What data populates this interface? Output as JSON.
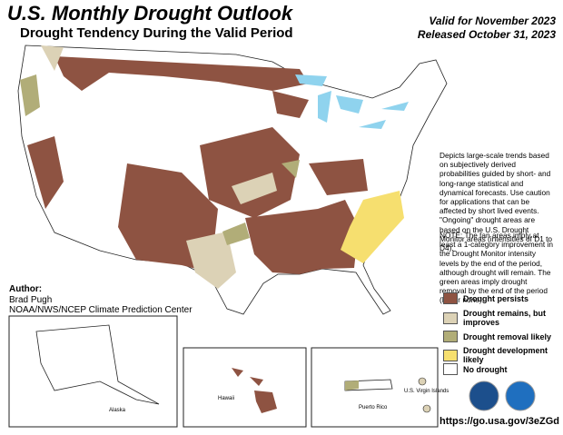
{
  "header": {
    "title": "U.S. Monthly Drought Outlook",
    "subtitle": "Drought Tendency During the Valid Period",
    "valid": "Valid for November 2023",
    "released": "Released October 31, 2023"
  },
  "description": "Depicts large-scale trends based on subjectively derived probabilities guided by short- and long-range statistical and dynamical forecasts. Use caution for applications that can be affected by short lived events. \"Ongoing\" drought areas are based on the U.S. Drought Monitor areas (intensities of D1 to D4).",
  "note": "NOTE: The tan areas imply at least a 1-category improvement in the Drought Monitor intensity levels by the end of the period, although drought will remain. The green areas imply drought removal by the end of the period (D0 or none).",
  "legend": [
    {
      "label": "Drought persists",
      "color": "#8e5342"
    },
    {
      "label": "Drought remains, but improves",
      "color": "#dcd2b6"
    },
    {
      "label": "Drought removal likely",
      "color": "#b1ad78"
    },
    {
      "label": "Drought development likely",
      "color": "#f6df6f"
    },
    {
      "label": "No drought",
      "color": "#ffffff"
    }
  ],
  "author": {
    "heading": "Author:",
    "name": "Brad Pugh",
    "org": "NOAA/NWS/NCEP Climate Prediction Center"
  },
  "insets": {
    "alaska": "Alaska",
    "hawaii": "Hawaii",
    "puerto_rico": "Puerto Rico",
    "virgin_islands": "U.S. Virgin Islands"
  },
  "url": "https://go.usa.gov/3eZGd"
}
